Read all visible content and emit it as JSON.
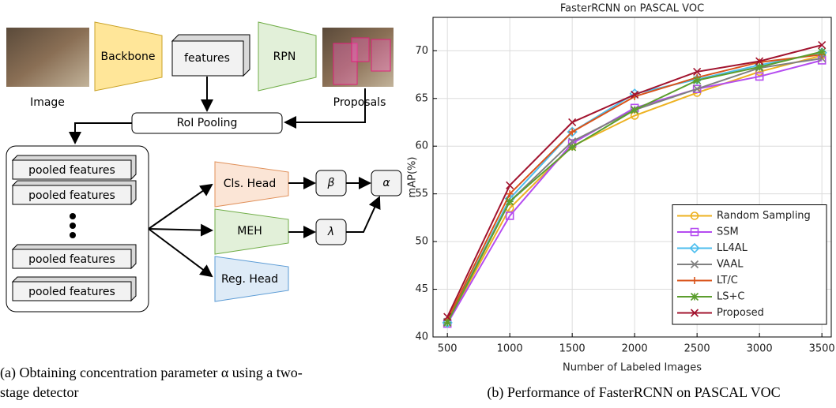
{
  "diagram": {
    "image_label": "Image",
    "backbone": "Backbone",
    "features": "features",
    "rpn": "RPN",
    "proposals_label": "Proposals",
    "roi_pooling": "RoI Pooling",
    "pooled": [
      "pooled features",
      "pooled features",
      "pooled features",
      "pooled features"
    ],
    "heads": [
      "Cls. Head",
      "MEH",
      "Reg. Head"
    ],
    "beta": "β",
    "lambda": "λ",
    "alpha": "α"
  },
  "captions": {
    "a": [
      "(a) Obtaining concentration parameter α using a two-",
      "stage detector"
    ],
    "b": "(b) Performance of FasterRCNN on PASCAL VOC"
  },
  "chart_data": {
    "type": "line",
    "title": "FasterRCNN on PASCAL VOC",
    "x_label": "Number of Labeled Images",
    "y_label": "mAP(%)",
    "x": [
      500,
      1000,
      1500,
      2000,
      2500,
      3000,
      3500
    ],
    "xlim": [
      385,
      3575
    ],
    "xticks": [
      500,
      1000,
      1500,
      2000,
      2500,
      3000,
      3500
    ],
    "ylim": [
      40,
      73.5
    ],
    "yticks": [
      40,
      45,
      50,
      55,
      60,
      65,
      70
    ],
    "grid": true,
    "legend": "lower right",
    "series": [
      {
        "name": "Random Sampling",
        "color": "#edb120",
        "marker": "circle",
        "values": [
          41.5,
          53.5,
          60.0,
          63.2,
          65.6,
          67.8,
          69.5
        ]
      },
      {
        "name": "SSM",
        "color": "#b54cf0",
        "marker": "square",
        "values": [
          41.4,
          52.7,
          60.3,
          64.0,
          66.0,
          67.3,
          69.0
        ]
      },
      {
        "name": "LL4AL",
        "color": "#4dbeee",
        "marker": "diamond",
        "values": [
          41.5,
          54.5,
          61.5,
          65.5,
          67.0,
          68.5,
          69.8
        ]
      },
      {
        "name": "VAAL",
        "color": "#808080",
        "marker": "x",
        "values": [
          41.6,
          54.2,
          60.5,
          63.8,
          66.0,
          68.2,
          69.2
        ]
      },
      {
        "name": "LT/C",
        "color": "#d95319",
        "marker": "plus",
        "values": [
          41.8,
          55.0,
          61.5,
          65.2,
          67.2,
          68.8,
          69.6
        ]
      },
      {
        "name": "LS+C",
        "color": "#5c9e2e",
        "marker": "star",
        "values": [
          41.5,
          54.2,
          59.9,
          63.8,
          66.9,
          68.3,
          69.9
        ]
      },
      {
        "name": "Proposed",
        "color": "#a2142f",
        "marker": "x",
        "values": [
          42.1,
          55.9,
          62.5,
          65.4,
          67.8,
          68.9,
          70.6
        ]
      }
    ]
  }
}
